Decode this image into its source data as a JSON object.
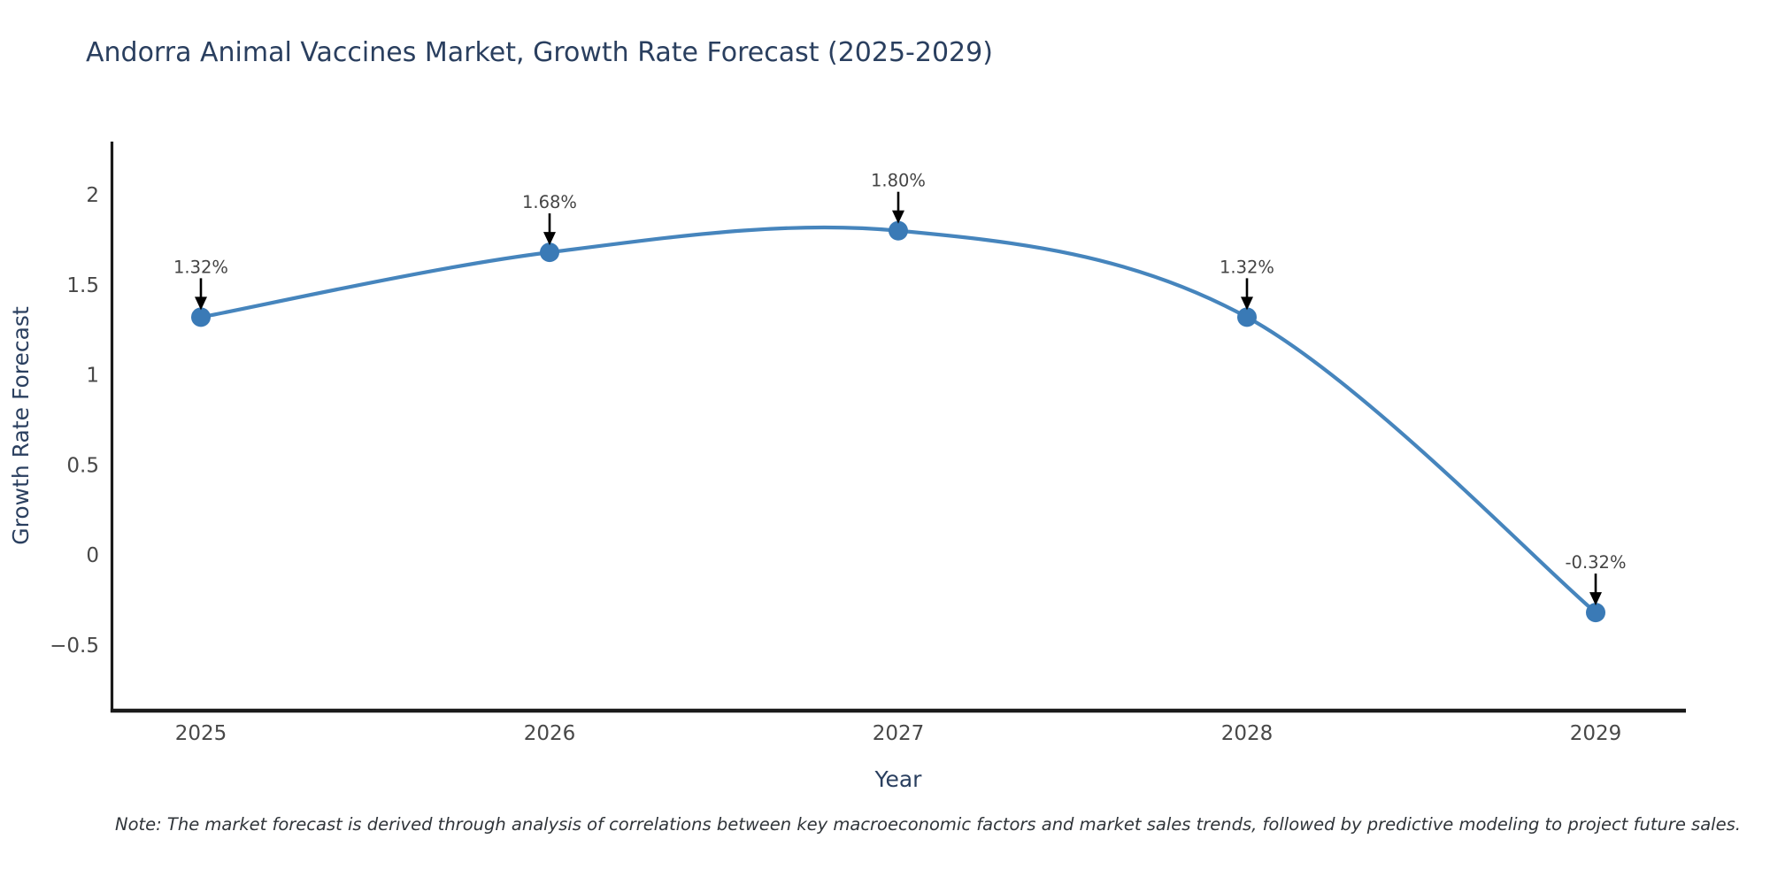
{
  "title": "Andorra Animal Vaccines Market, Growth Rate Forecast (2025-2029)",
  "note": "Note: The market forecast is derived through analysis of correlations between key macroeconomic factors and market sales trends, followed by predictive modeling to project future sales.",
  "chart_data": {
    "type": "line",
    "line_shape": "spline",
    "title": "Andorra Animal Vaccines Market, Growth Rate Forecast (2025-2029)",
    "xlabel": "Year",
    "ylabel": "Growth Rate Forecast",
    "x": [
      2025,
      2026,
      2027,
      2028,
      2029
    ],
    "y": [
      1.32,
      1.68,
      1.8,
      1.32,
      -0.32
    ],
    "point_labels": [
      "1.32%",
      "1.68%",
      "1.80%",
      "1.32%",
      "-0.32%"
    ],
    "xtick_labels": [
      "2025",
      "2026",
      "2027",
      "2028",
      "2029"
    ],
    "ytick_values": [
      2,
      1.5,
      1,
      0.5,
      0,
      -0.5
    ],
    "ytick_labels": [
      "2",
      "1.5",
      "1",
      "0.5",
      "0",
      "−0.5"
    ],
    "ylim": [
      -0.87,
      2.3
    ],
    "grid": false,
    "legend": "none",
    "annotation_arrows": "down-to-point",
    "colors": {
      "line": "#4685bd",
      "marker": "#3a7ab6",
      "axis_line": "#1a1a1a",
      "tick_text": "#484848",
      "axis_title_text": "#2a3f5f",
      "title_text": "#2a3f5f",
      "annotation_text": "#444444",
      "arrow": "#000000",
      "background": "#ffffff"
    }
  }
}
